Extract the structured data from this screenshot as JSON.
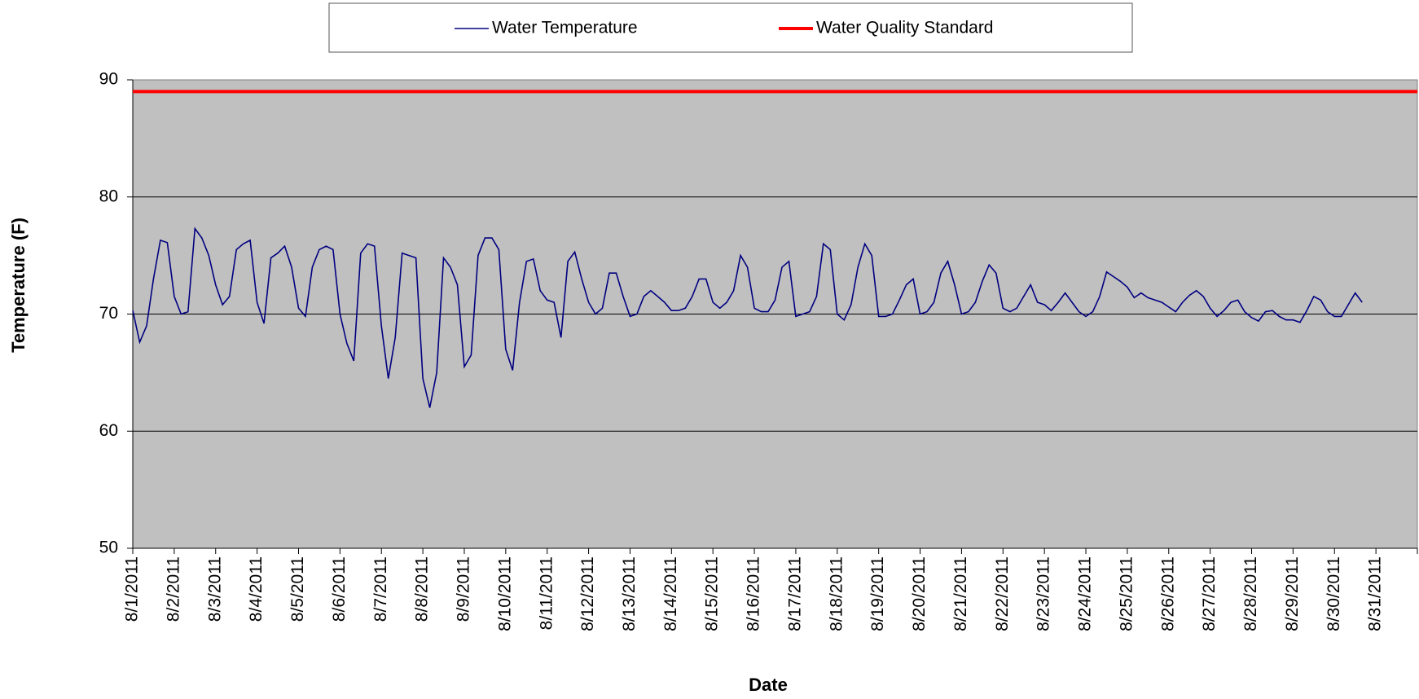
{
  "chart_data": {
    "type": "line",
    "ylabel": "Temperature (F)",
    "xlabel": "Date",
    "xticks": [
      "8/1/2011",
      "8/2/2011",
      "8/3/2011",
      "8/4/2011",
      "8/5/2011",
      "8/6/2011",
      "8/7/2011",
      "8/8/2011",
      "8/9/2011",
      "8/10/2011",
      "8/11/2011",
      "8/12/2011",
      "8/13/2011",
      "8/14/2011",
      "8/15/2011",
      "8/16/2011",
      "8/17/2011",
      "8/18/2011",
      "8/19/2011",
      "8/20/2011",
      "8/21/2011",
      "8/22/2011",
      "8/23/2011",
      "8/24/2011",
      "8/25/2011",
      "8/26/2011",
      "8/27/2011",
      "8/28/2011",
      "8/29/2011",
      "8/30/2011",
      "8/31/2011"
    ],
    "ylim": [
      50,
      90
    ],
    "yticks": [
      50,
      60,
      70,
      80,
      90
    ],
    "grid": true,
    "series": [
      {
        "name": "Water Temperature",
        "color": "#000080",
        "values": [
          70.3,
          67.6,
          69.0,
          73.0,
          76.3,
          76.1,
          71.5,
          70.0,
          70.2,
          77.3,
          76.5,
          75.0,
          72.5,
          70.8,
          71.5,
          75.5,
          76.0,
          76.3,
          71.0,
          69.2,
          74.8,
          75.2,
          75.8,
          74.0,
          70.5,
          69.8,
          74.0,
          75.5,
          75.8,
          75.5,
          70.0,
          67.5,
          66.0,
          75.2,
          76.0,
          75.8,
          69.0,
          64.5,
          68.0,
          75.2,
          75.0,
          74.8,
          64.5,
          62.0,
          65.0,
          74.8,
          74.0,
          72.5,
          65.5,
          66.5,
          75.0,
          76.5,
          76.5,
          75.5,
          67.0,
          65.2,
          71.0,
          74.5,
          74.7,
          72.0,
          71.2,
          71.0,
          68.0,
          74.5,
          75.3,
          73.0,
          71.0,
          70.0,
          70.5,
          73.5,
          73.5,
          71.5,
          69.8,
          70.0,
          71.5,
          72.0,
          71.5,
          71.0,
          70.3,
          70.3,
          70.5,
          71.5,
          73.0,
          73.0,
          71.0,
          70.5,
          71.0,
          72.0,
          75.0,
          74.0,
          70.5,
          70.2,
          70.2,
          71.2,
          74.0,
          74.5,
          69.8,
          70.0,
          70.2,
          71.5,
          76.0,
          75.5,
          70.0,
          69.5,
          70.8,
          74.0,
          76.0,
          75.0,
          69.8,
          69.8,
          70.0,
          71.2,
          72.5,
          73.0,
          70.0,
          70.2,
          71.0,
          73.5,
          74.5,
          72.5,
          70.0,
          70.2,
          71.0,
          72.8,
          74.2,
          73.5,
          70.5,
          70.2,
          70.5,
          71.5,
          72.5,
          71.0,
          70.8,
          70.3,
          71.0,
          71.8,
          71.0,
          70.2,
          69.8,
          70.2,
          71.5,
          73.6,
          73.2,
          72.8,
          72.3,
          71.4,
          71.8,
          71.4,
          71.2,
          71.0,
          70.6,
          70.2,
          71.0,
          71.6,
          72.0,
          71.5,
          70.5,
          69.8,
          70.3,
          71.0,
          71.2,
          70.2,
          69.7,
          69.4,
          70.2,
          70.3,
          69.8,
          69.5,
          69.5,
          69.3,
          70.3,
          71.5,
          71.2,
          70.2,
          69.8,
          69.8,
          70.8,
          71.8,
          71.0
        ]
      },
      {
        "name": "Water Quality Standard",
        "color": "#ff0000",
        "value": 89
      }
    ]
  }
}
